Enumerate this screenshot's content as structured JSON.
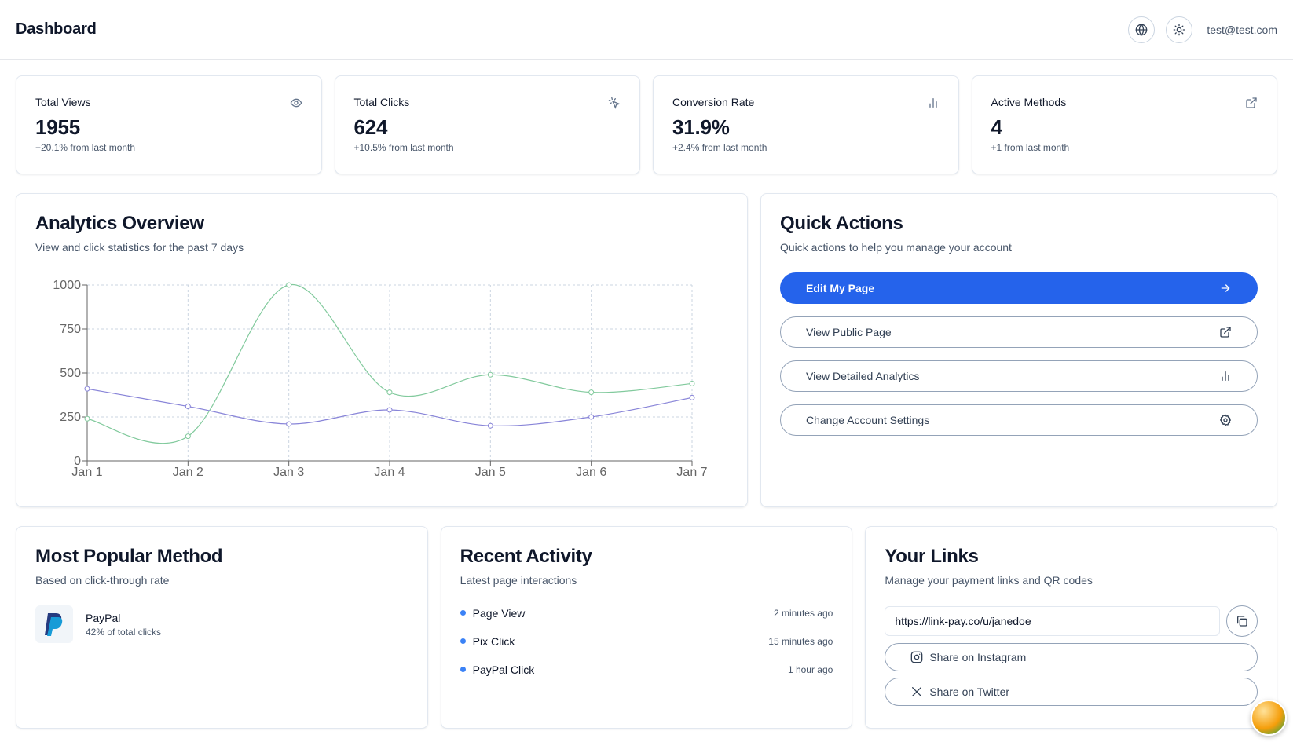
{
  "header": {
    "title": "Dashboard",
    "email": "test@test.com",
    "icons": [
      "globe-icon",
      "sun-icon"
    ]
  },
  "stats": [
    {
      "label": "Total Views",
      "value": "1955",
      "sub": "+20.1% from last month",
      "icon": "eye-icon"
    },
    {
      "label": "Total Clicks",
      "value": "624",
      "sub": "+10.5% from last month",
      "icon": "pointer-click-icon"
    },
    {
      "label": "Conversion Rate",
      "value": "31.9%",
      "sub": "+2.4% from last month",
      "icon": "bar-chart-icon"
    },
    {
      "label": "Active Methods",
      "value": "4",
      "sub": "+1 from last month",
      "icon": "external-link-icon"
    }
  ],
  "analytics": {
    "title": "Analytics Overview",
    "desc": "View and click statistics for the past 7 days"
  },
  "chart_data": {
    "type": "line",
    "title": "",
    "xlabel": "",
    "ylabel": "",
    "categories": [
      "Jan 1",
      "Jan 2",
      "Jan 3",
      "Jan 4",
      "Jan 5",
      "Jan 6",
      "Jan 7"
    ],
    "y_ticks": [
      "0",
      "250",
      "500",
      "750",
      "1000"
    ],
    "ylim": [
      0,
      1000
    ],
    "grid": true,
    "legend": "none",
    "series": [
      {
        "values": [
          240,
          140,
          1000,
          390,
          490,
          390,
          440
        ],
        "color": "#82ca9d"
      },
      {
        "values": [
          410,
          310,
          210,
          290,
          200,
          250,
          360
        ],
        "color": "#8884d8"
      }
    ]
  },
  "quick_actions": {
    "title": "Quick Actions",
    "desc": "Quick actions to help you manage your account",
    "buttons": [
      {
        "label": "Edit My Page",
        "icon": "arrow-right-icon"
      },
      {
        "label": "View Public Page",
        "icon": "external-link-icon"
      },
      {
        "label": "View Detailed Analytics",
        "icon": "bar-chart-icon"
      },
      {
        "label": "Change Account Settings",
        "icon": "gear-icon"
      }
    ]
  },
  "popular": {
    "title": "Most Popular Method",
    "desc": "Based on click-through rate",
    "method_name": "PayPal",
    "method_sub": "42% of total clicks",
    "icon": "paypal-logo-icon"
  },
  "activity": {
    "title": "Recent Activity",
    "desc": "Latest page interactions",
    "items": [
      {
        "label": "Page View",
        "time": "2 minutes ago"
      },
      {
        "label": "Pix Click",
        "time": "15 minutes ago"
      },
      {
        "label": "PayPal Click",
        "time": "1 hour ago"
      }
    ]
  },
  "links": {
    "title": "Your Links",
    "desc": "Manage your payment links and QR codes",
    "url": "https://link-pay.co/u/janedoe",
    "share_instagram": "Share on Instagram",
    "share_twitter": "Share on Twitter",
    "icons": [
      "copy-icon",
      "instagram-icon",
      "x-twitter-icon"
    ]
  },
  "colors": {
    "primary": "#2563eb",
    "accent_dot": "#3b82f6",
    "series_views": "#82ca9d",
    "series_clicks": "#8884d8"
  }
}
